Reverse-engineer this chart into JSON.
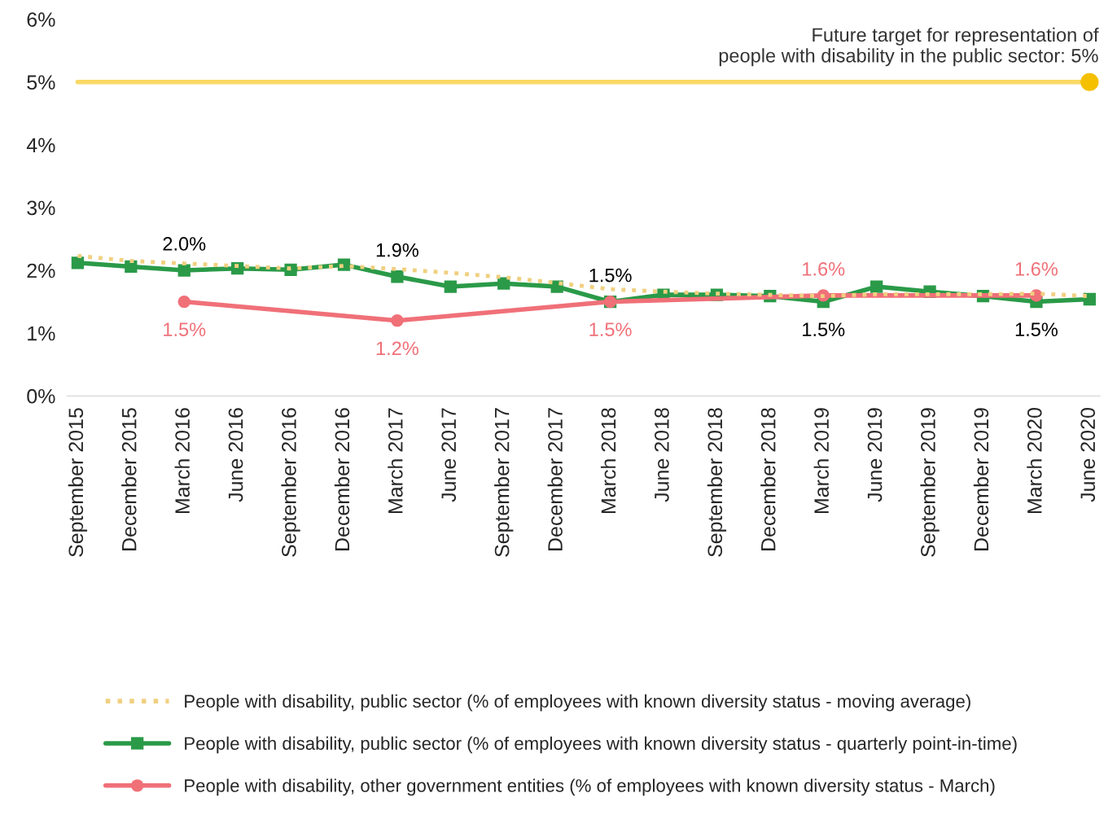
{
  "chart_data": {
    "type": "line",
    "categories": [
      "September 2015",
      "December 2015",
      "March 2016",
      "June 2016",
      "September 2016",
      "December 2016",
      "March 2017",
      "June 2017",
      "September 2017",
      "December 2017",
      "March 2018",
      "June 2018",
      "September 2018",
      "December 2018",
      "March 2019",
      "June 2019",
      "September 2019",
      "December 2019",
      "March 2020",
      "June 2020"
    ],
    "series": [
      {
        "name": "People with disability, public sector (% of employees with known diversity status - moving average)",
        "color": "#f0d080",
        "line_style": "dotted",
        "marker": "none",
        "values": [
          2.23,
          2.15,
          2.11,
          2.07,
          2.03,
          2.07,
          2.02,
          1.96,
          1.89,
          1.8,
          1.7,
          1.66,
          1.63,
          1.61,
          1.59,
          1.62,
          1.62,
          1.62,
          1.63,
          1.59
        ]
      },
      {
        "name": "People with disability, public sector (% of employees with known diversity status - quarterly point-in-time)",
        "color": "#2a9a48",
        "line_style": "solid",
        "marker": "square",
        "values": [
          2.12,
          2.06,
          2.0,
          2.03,
          2.01,
          2.09,
          1.9,
          1.74,
          1.79,
          1.74,
          1.5,
          1.61,
          1.61,
          1.59,
          1.5,
          1.74,
          1.66,
          1.59,
          1.5,
          1.54
        ],
        "value_labels": [
          null,
          null,
          "2.0%",
          null,
          null,
          null,
          "1.9%",
          null,
          null,
          null,
          "1.5%",
          null,
          null,
          null,
          "1.5%",
          null,
          null,
          null,
          "1.5%",
          null
        ]
      },
      {
        "name": "People with disability, other government entities (% of employees with known diversity status - March)",
        "color": "#f07078",
        "line_style": "solid",
        "marker": "circle",
        "values": [
          null,
          null,
          1.5,
          null,
          null,
          null,
          1.2,
          null,
          null,
          null,
          1.5,
          null,
          null,
          null,
          1.6,
          null,
          null,
          null,
          1.6,
          null
        ],
        "value_labels": [
          null,
          null,
          "1.5%",
          null,
          null,
          null,
          "1.2%",
          null,
          null,
          null,
          "1.5%",
          null,
          null,
          null,
          "1.6%",
          null,
          null,
          null,
          "1.6%",
          null
        ]
      }
    ],
    "ylim": [
      0,
      6
    ],
    "yticks": [
      {
        "value": 0,
        "label": "0%"
      },
      {
        "value": 1,
        "label": "1%"
      },
      {
        "value": 2,
        "label": "2%"
      },
      {
        "value": 3,
        "label": "3%"
      },
      {
        "value": 4,
        "label": "4%"
      },
      {
        "value": 5,
        "label": "5%"
      },
      {
        "value": 6,
        "label": "6%"
      }
    ],
    "ref_lines": [
      {
        "axis": "y",
        "value": 5,
        "label": "Future target for representation of\npeople with disability in the public sector: 5%",
        "color": "#f5c000"
      }
    ],
    "grid": false,
    "legend": "bottom"
  }
}
